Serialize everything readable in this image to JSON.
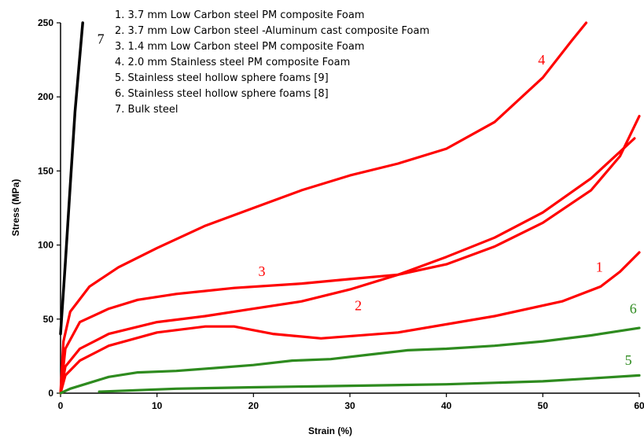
{
  "chart_data": {
    "type": "line",
    "xlabel": "Strain (%)",
    "ylabel": "Stress (MPa)",
    "xlim": [
      0,
      60
    ],
    "ylim": [
      0,
      250
    ],
    "x_ticks": [
      "0",
      "10",
      "20",
      "30",
      "40",
      "50",
      "60"
    ],
    "y_ticks": [
      "0",
      "50",
      "100",
      "150",
      "200",
      "250"
    ],
    "grid": false,
    "legend_position": "top-left",
    "legend": [
      "1. 3.7 mm Low Carbon steel PM composite Foam",
      "2. 3.7 mm Low Carbon steel -Aluminum cast composite Foam",
      "3. 1.4 mm Low Carbon steel PM composite Foam",
      "4. 2.0 mm Stainless steel PM composite Foam",
      "5. Stainless steel hollow sphere foams [9]",
      "6. Stainless steel hollow sphere foams [8]",
      "7. Bulk steel"
    ],
    "series": [
      {
        "label": "1",
        "color": "#ff0000",
        "x": [
          0,
          0.5,
          2,
          5,
          10,
          15,
          18,
          22,
          27,
          35,
          45,
          52,
          56,
          58,
          60
        ],
        "y": [
          0,
          12,
          22,
          32,
          41,
          45,
          45,
          40,
          37,
          41,
          52,
          62,
          72,
          82,
          95
        ]
      },
      {
        "label": "2",
        "color": "#ff0000",
        "x": [
          0,
          0.5,
          2,
          5,
          10,
          15,
          20,
          25,
          30,
          35,
          40,
          45,
          50,
          55,
          58,
          59.5
        ],
        "y": [
          0,
          18,
          30,
          40,
          48,
          52,
          57,
          62,
          70,
          80,
          92,
          105,
          122,
          145,
          163,
          172
        ]
      },
      {
        "label": "3",
        "color": "#ff0000",
        "x": [
          0,
          0.5,
          2,
          5,
          8,
          12,
          18,
          25,
          30,
          35,
          40,
          45,
          50,
          55,
          58,
          60
        ],
        "y": [
          0,
          30,
          48,
          57,
          63,
          67,
          71,
          74,
          77,
          80,
          87,
          99,
          115,
          137,
          160,
          187
        ]
      },
      {
        "label": "4",
        "color": "#ff0000",
        "x": [
          0,
          0.3,
          1,
          3,
          6,
          10,
          15,
          20,
          25,
          30,
          35,
          40,
          45,
          50,
          53,
          54.5
        ],
        "y": [
          0,
          35,
          55,
          72,
          85,
          98,
          113,
          125,
          137,
          147,
          155,
          165,
          183,
          213,
          238,
          250
        ]
      },
      {
        "label": "5",
        "color": "#2e8b1f",
        "x": [
          4,
          8,
          12,
          20,
          30,
          40,
          50,
          55,
          60
        ],
        "y": [
          1,
          2,
          3,
          4,
          5,
          6,
          8,
          10,
          12
        ]
      },
      {
        "label": "6",
        "color": "#2e8b1f",
        "x": [
          0,
          1,
          3,
          5,
          8,
          12,
          16,
          20,
          24,
          28,
          32,
          36,
          40,
          45,
          50,
          55,
          60
        ],
        "y": [
          0,
          3,
          7,
          11,
          14,
          15,
          17,
          19,
          22,
          23,
          26,
          29,
          30,
          32,
          35,
          39,
          44
        ]
      },
      {
        "label": "7",
        "color": "#000000",
        "x": [
          0,
          0.5,
          1,
          1.5,
          2.3
        ],
        "y": [
          40,
          88,
          140,
          190,
          250
        ]
      }
    ],
    "label_colors": {
      "red_curves": "#ff0000",
      "green_curves": "#2e8b1f",
      "bulk_steel": "#000000"
    }
  }
}
